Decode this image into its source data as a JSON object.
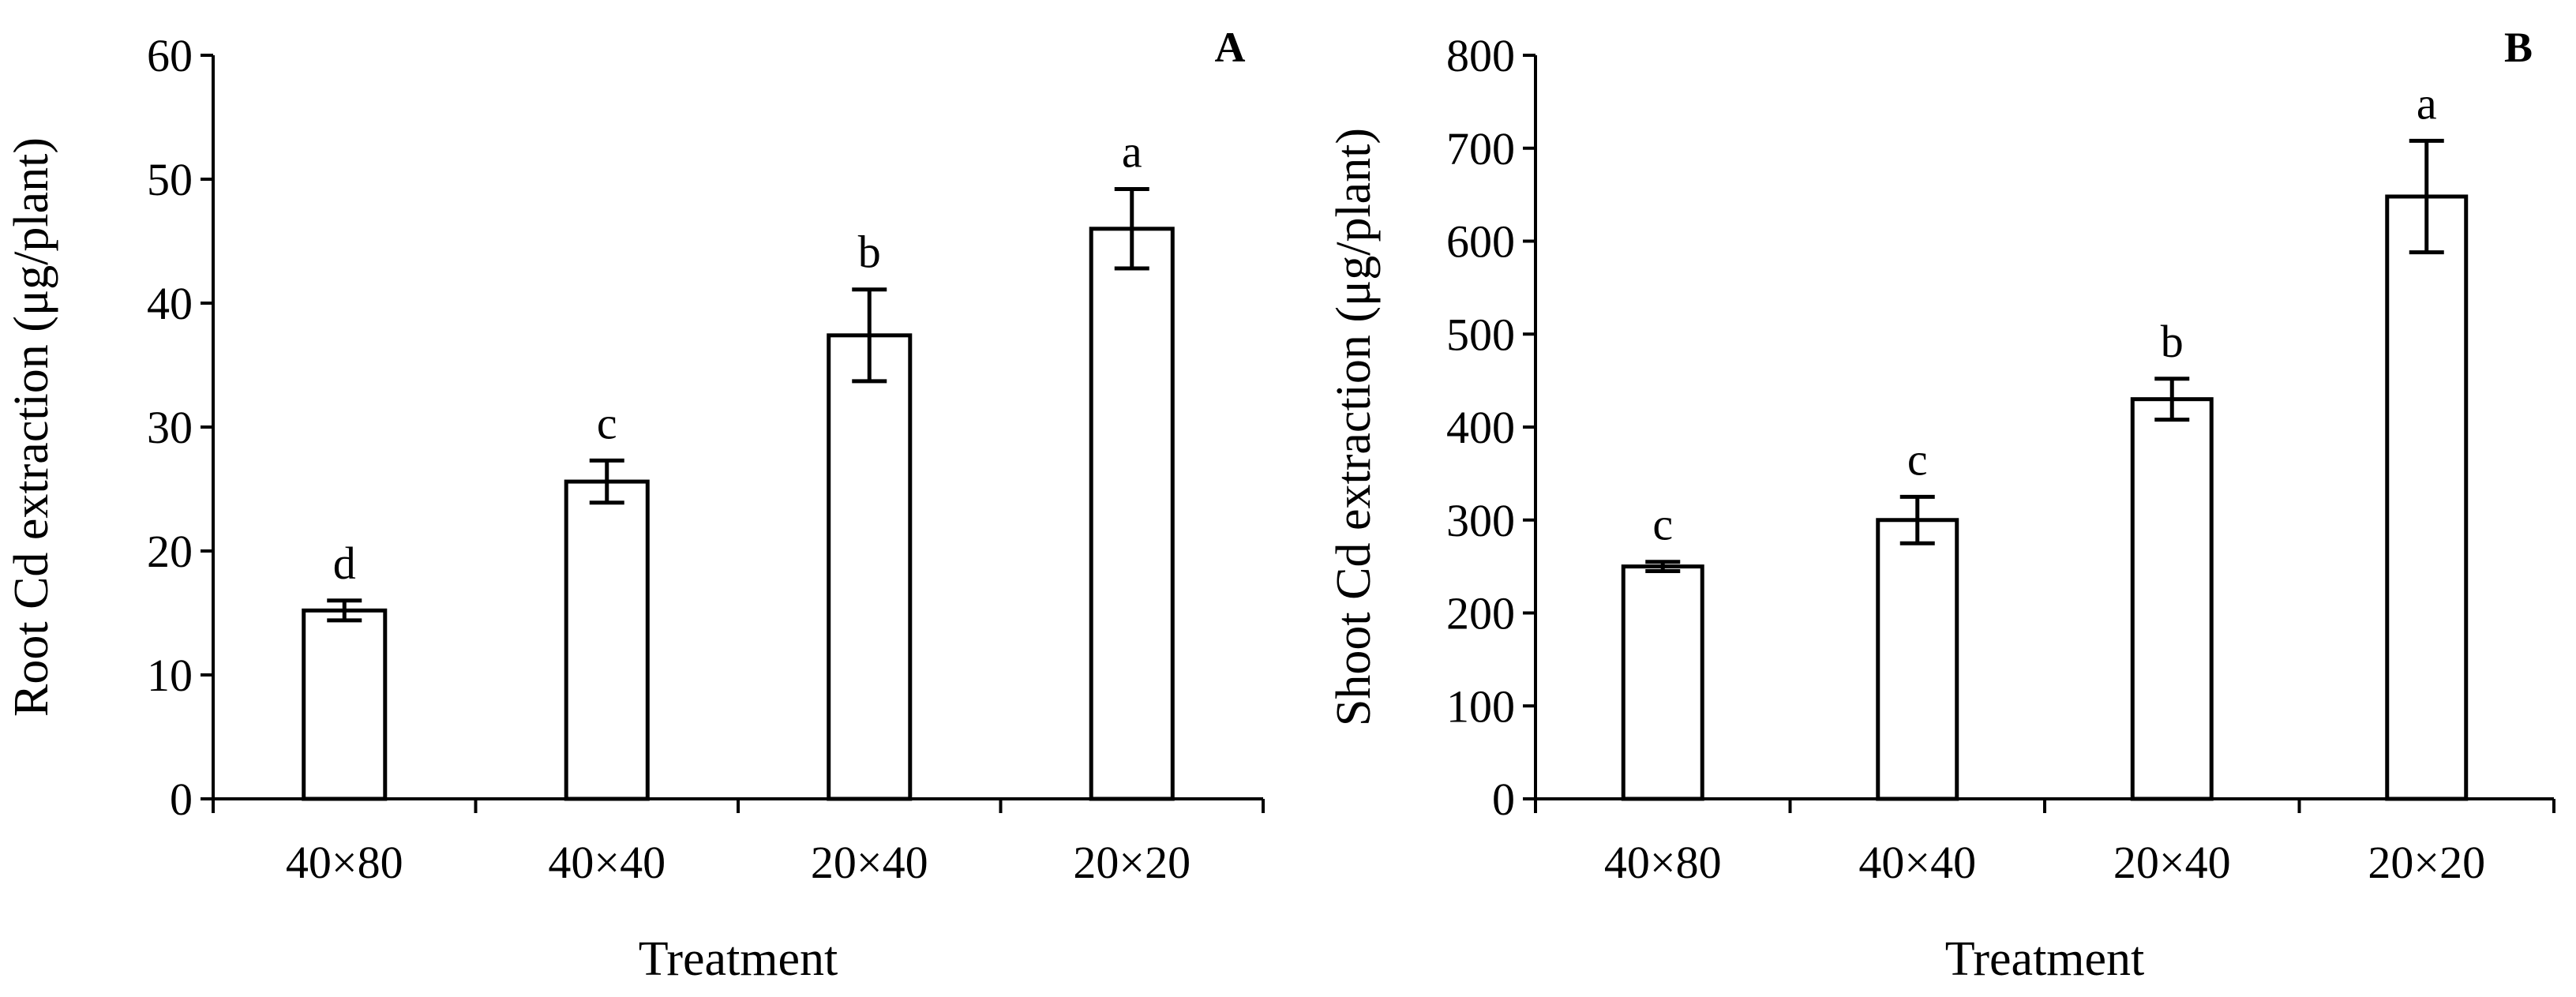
{
  "chart_data": [
    {
      "type": "bar",
      "panel_label": "A",
      "categories": [
        "40×80",
        "40×40",
        "20×40",
        "20×20"
      ],
      "values": [
        15.2,
        25.6,
        37.4,
        46.0
      ],
      "errors": [
        0.8,
        1.7,
        3.7,
        3.2
      ],
      "significance": [
        "d",
        "c",
        "b",
        "a"
      ],
      "xlabel": "Treatment",
      "ylabel": "Root Cd extraction (μg/plant)",
      "ylim": [
        0,
        60
      ],
      "yticks": [
        "0",
        "10",
        "20",
        "30",
        "40",
        "50",
        "60"
      ],
      "grid": false,
      "legend": "none"
    },
    {
      "type": "bar",
      "panel_label": "B",
      "categories": [
        "40×80",
        "40×40",
        "20×40",
        "20×20"
      ],
      "values": [
        250,
        300,
        430,
        648
      ],
      "errors": [
        5,
        25,
        22,
        60
      ],
      "significance": [
        "c",
        "c",
        "b",
        "a"
      ],
      "xlabel": "Treatment",
      "ylabel": "Shoot Cd extraction (μg/plant)",
      "ylim": [
        0,
        800
      ],
      "yticks": [
        "0",
        "100",
        "200",
        "300",
        "400",
        "500",
        "600",
        "700",
        "800"
      ],
      "grid": false,
      "legend": "none"
    }
  ]
}
